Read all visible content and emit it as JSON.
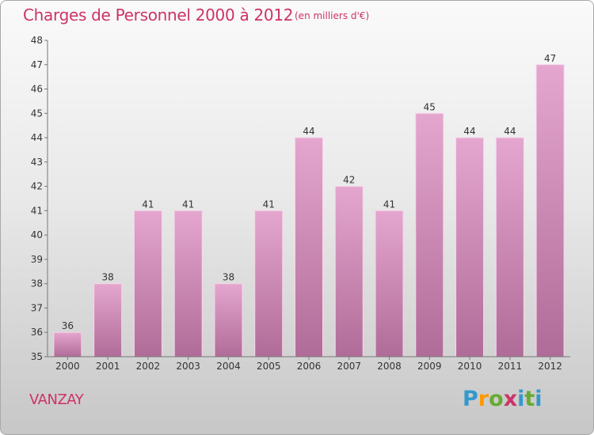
{
  "title": "Charges de Personnel 2000 à 2012",
  "subtitle": "(en milliers d'€)",
  "commune": "VANZAY",
  "logo": {
    "letters": [
      "P",
      "r",
      "o",
      "x",
      "i",
      "t",
      "i"
    ],
    "colors": [
      "#3399cc",
      "#ff9900",
      "#66aa33",
      "#cc3366",
      "#3399cc",
      "#66aa33",
      "#3399cc"
    ]
  },
  "colors": {
    "bar_top": "#e4a6cf",
    "bar_bottom": "#b06c98",
    "text": "#cc3366"
  },
  "chart_data": {
    "type": "bar",
    "categories": [
      "2000",
      "2001",
      "2002",
      "2003",
      "2004",
      "2005",
      "2006",
      "2007",
      "2008",
      "2009",
      "2010",
      "2011",
      "2012"
    ],
    "values": [
      36,
      38,
      41,
      41,
      38,
      41,
      44,
      42,
      41,
      45,
      44,
      44,
      47
    ],
    "value_labels": [
      "36",
      "38",
      "41",
      "41",
      "38",
      "41",
      "44",
      "42",
      "41",
      "45",
      "44",
      "44",
      "47"
    ],
    "yticks": [
      "35",
      "36",
      "37",
      "38",
      "39",
      "40",
      "41",
      "42",
      "43",
      "44",
      "45",
      "46",
      "47",
      "48"
    ],
    "ylim": [
      35,
      48
    ],
    "grid": false
  }
}
